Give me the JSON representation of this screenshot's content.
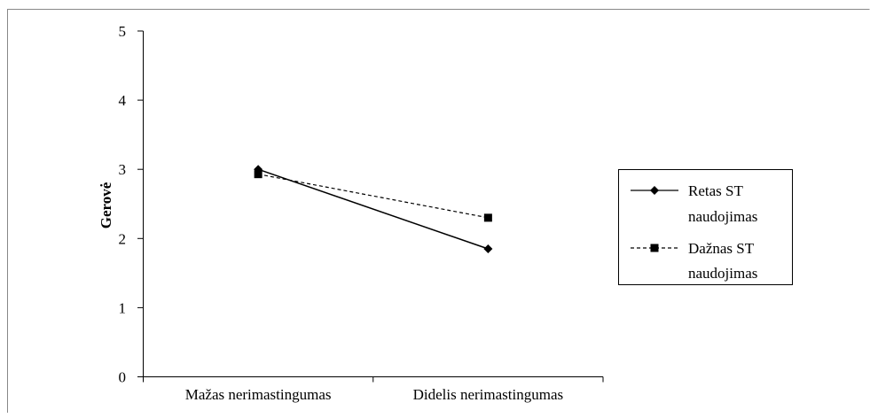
{
  "chart_data": {
    "type": "line",
    "title": "",
    "xlabel": "",
    "ylabel": "Gerovė",
    "categories": [
      "Mažas nerimastingumas",
      "Didelis nerimastingumas"
    ],
    "ylim": [
      0,
      5
    ],
    "yticks": [
      0,
      1,
      2,
      3,
      4,
      5
    ],
    "grid": false,
    "legend_position": "right",
    "series": [
      {
        "name_line1": "Retas ST",
        "name_line2": "naudojimas",
        "values": [
          3.0,
          1.85
        ],
        "marker": "diamond",
        "line_style": "solid",
        "color": "#000000"
      },
      {
        "name_line1": "Dažnas ST",
        "name_line2": "naudojimas",
        "values": [
          2.93,
          2.3
        ],
        "marker": "square",
        "line_style": "dashed",
        "color": "#000000"
      }
    ]
  }
}
